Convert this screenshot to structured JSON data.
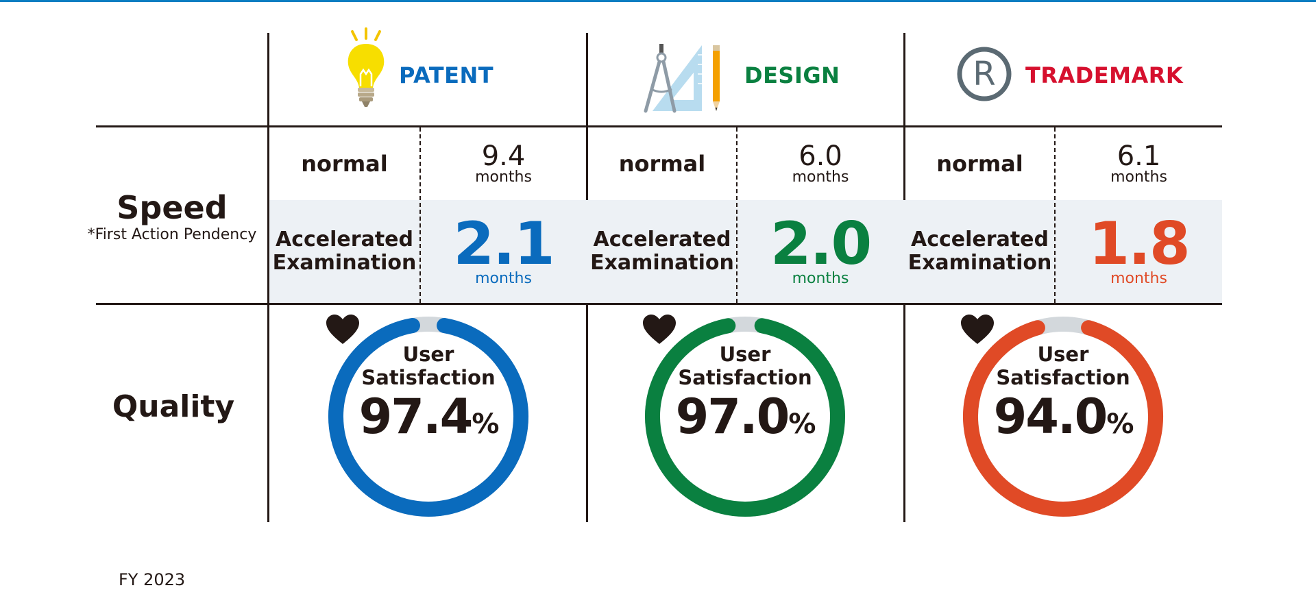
{
  "chart_data": {
    "type": "table",
    "footnote": "FY 2023",
    "rows": {
      "speed": {
        "title": "Speed",
        "subtitle": "*First Action Pendency"
      },
      "quality": {
        "title": "Quality"
      }
    },
    "columns": [
      {
        "name": "PATENT",
        "icon": "lightbulb-icon",
        "color": "#0a6bbd",
        "normal_label": "normal",
        "normal_value": "9.4",
        "normal_unit": "months",
        "accel_label_1": "Accelerated",
        "accel_label_2": "Examination",
        "accel_value": "2.1",
        "accel_unit": "months",
        "sat_label_1": "User",
        "sat_label_2": "Satisfaction",
        "satisfaction_text": "97.4",
        "satisfaction_pct": 97.4,
        "pct_sign": "%"
      },
      {
        "name": "DESIGN",
        "icon": "drafting-tools-icon",
        "color": "#0a8040",
        "normal_label": "normal",
        "normal_value": "6.0",
        "normal_unit": "months",
        "accel_label_1": "Accelerated",
        "accel_label_2": "Examination",
        "accel_value": "2.0",
        "accel_unit": "months",
        "sat_label_1": "User",
        "sat_label_2": "Satisfaction",
        "satisfaction_text": "97.0",
        "satisfaction_pct": 97.0,
        "pct_sign": "%"
      },
      {
        "name": "TRADEMARK",
        "icon": "registered-mark-icon",
        "color": "#e04a26",
        "title_color": "#d6102e",
        "normal_label": "normal",
        "normal_value": "6.1",
        "normal_unit": "months",
        "accel_label_1": "Accelerated",
        "accel_label_2": "Examination",
        "accel_value": "1.8",
        "accel_unit": "months",
        "sat_label_1": "User",
        "sat_label_2": "Satisfaction",
        "satisfaction_text": "94.0",
        "satisfaction_pct": 94.0,
        "pct_sign": "%"
      }
    ]
  }
}
